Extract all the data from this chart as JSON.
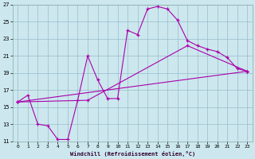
{
  "xlabel": "Windchill (Refroidissement éolien,°C)",
  "bg_color": "#cce8ee",
  "line_color": "#aa00aa",
  "grid_color": "#99bbcc",
  "xlim": [
    -0.5,
    23.5
  ],
  "ylim": [
    11,
    27
  ],
  "xticks": [
    0,
    1,
    2,
    3,
    4,
    5,
    6,
    7,
    8,
    9,
    10,
    11,
    12,
    13,
    14,
    15,
    16,
    17,
    18,
    19,
    20,
    21,
    22,
    23
  ],
  "yticks": [
    11,
    13,
    15,
    17,
    19,
    21,
    23,
    25,
    27
  ],
  "line1_x": [
    0,
    1,
    2,
    3,
    4,
    5,
    6,
    7,
    8,
    9,
    10,
    11,
    12,
    13,
    14,
    15,
    16,
    17,
    18,
    19,
    20,
    21,
    22,
    23
  ],
  "line1_y": [
    15.6,
    16.4,
    13.0,
    12.8,
    11.2,
    11.2,
    15.8,
    21.0,
    18.2,
    16.0,
    16.0,
    24.0,
    23.5,
    26.5,
    26.8,
    26.5,
    25.2,
    22.8,
    22.2,
    21.8,
    21.5,
    20.8,
    19.5,
    19.2
  ],
  "line2_x": [
    0,
    23
  ],
  "line2_y": [
    15.6,
    19.2
  ],
  "line3_x": [
    0,
    7,
    17,
    23
  ],
  "line3_y": [
    15.6,
    15.8,
    22.2,
    19.2
  ]
}
